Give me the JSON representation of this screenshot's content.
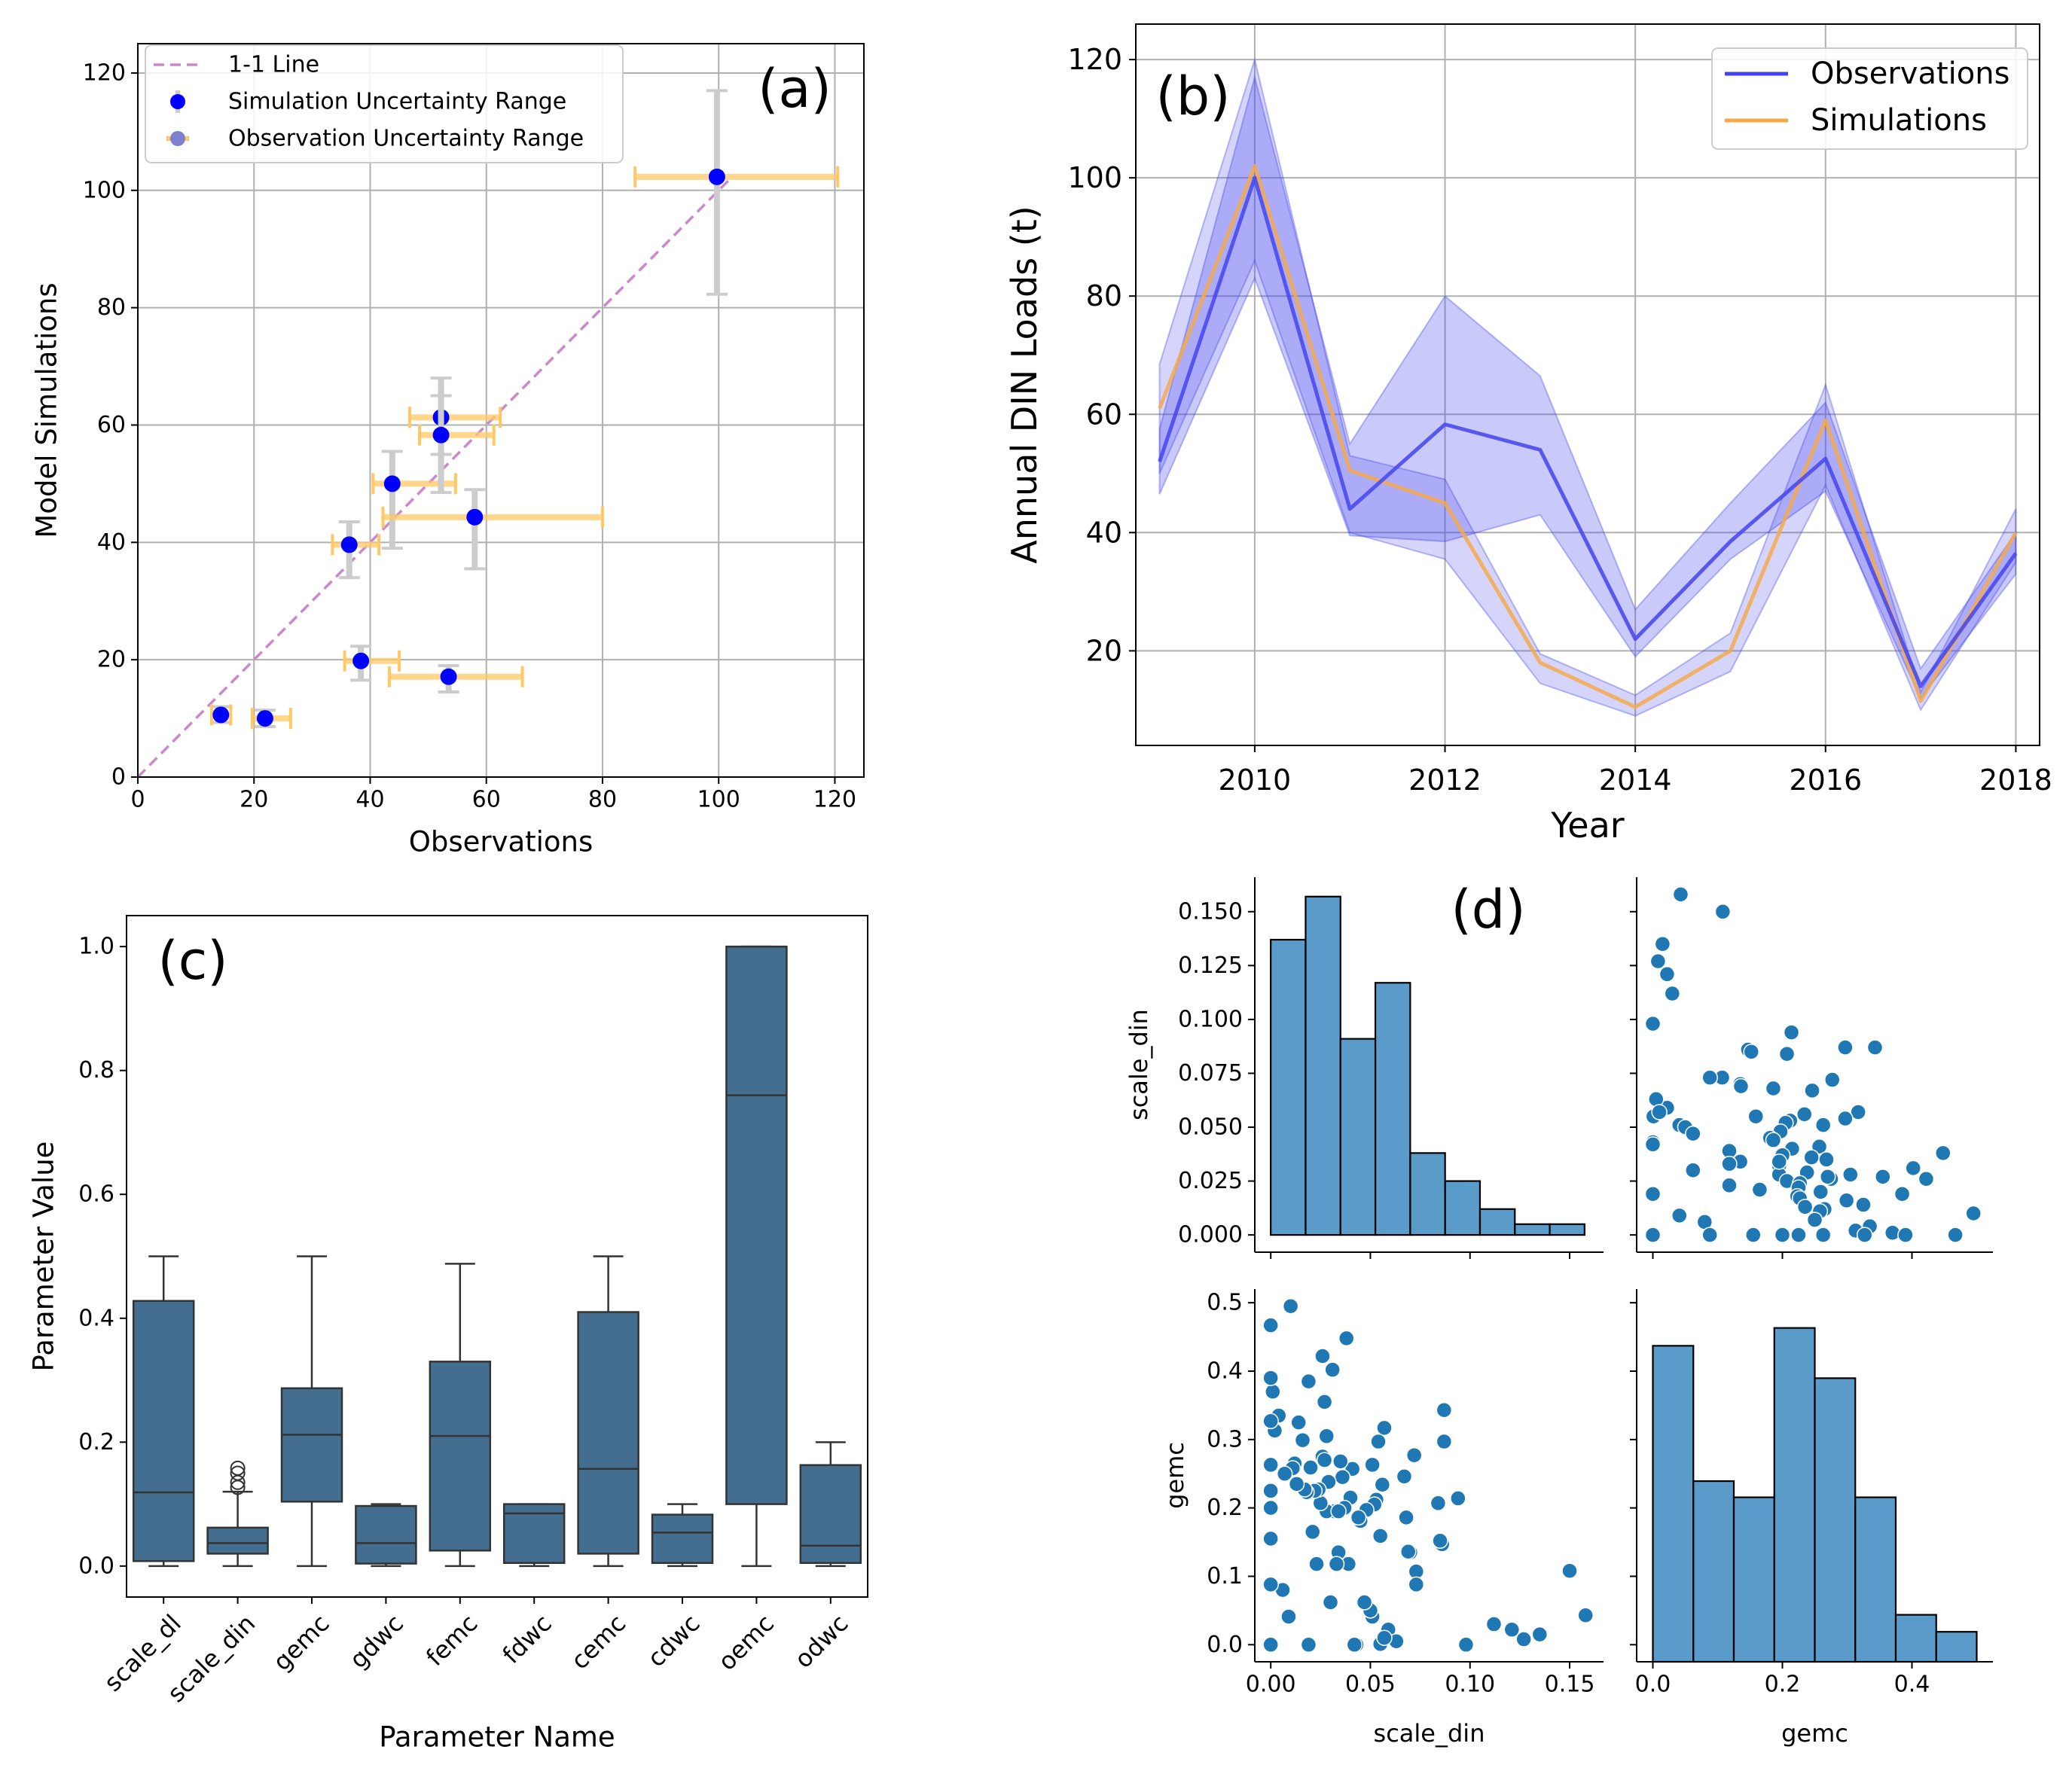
{
  "chart_data": [
    {
      "panel_label": "(a)",
      "type": "scatter",
      "xlabel": "Observations",
      "ylabel": "Model Simulations",
      "xlim": [
        0,
        125
      ],
      "ylim": [
        0,
        125
      ],
      "xticks": [
        0,
        20,
        40,
        60,
        80,
        100,
        120
      ],
      "yticks": [
        0,
        20,
        40,
        60,
        80,
        100,
        120
      ],
      "grid": true,
      "legend_position": "top-left",
      "legend": [
        "1-1 Line",
        "Simulation Uncertainty Range",
        "Observation Uncertainty Range"
      ],
      "colors": {
        "one_to_one": "#cc88cc",
        "points": "#0000ff",
        "sim_range": "#cccccc",
        "obs_range": "#ffc864"
      },
      "points": [
        {
          "x": 14.3,
          "y": 10.6,
          "xlo": 12.7,
          "xhi": 16.0,
          "ylo": 9.3,
          "yhi": 12.0
        },
        {
          "x": 21.9,
          "y": 10.0,
          "xlo": 19.7,
          "xhi": 26.3,
          "ylo": 8.6,
          "yhi": 11.4
        },
        {
          "x": 36.4,
          "y": 39.6,
          "xlo": 33.5,
          "xhi": 41.5,
          "ylo": 34.0,
          "yhi": 43.5
        },
        {
          "x": 38.4,
          "y": 19.8,
          "xlo": 35.6,
          "xhi": 45.0,
          "ylo": 16.5,
          "yhi": 22.3
        },
        {
          "x": 43.8,
          "y": 50.0,
          "xlo": 40.5,
          "xhi": 54.7,
          "ylo": 39.0,
          "yhi": 55.5
        },
        {
          "x": 52.2,
          "y": 61.3,
          "xlo": 46.8,
          "xhi": 62.4,
          "ylo": 55.0,
          "yhi": 68.0
        },
        {
          "x": 52.2,
          "y": 58.3,
          "xlo": 48.5,
          "xhi": 61.3,
          "ylo": 48.5,
          "yhi": 65.0
        },
        {
          "x": 53.5,
          "y": 17.1,
          "xlo": 43.3,
          "xhi": 66.2,
          "ylo": 14.5,
          "yhi": 19.0
        },
        {
          "x": 58.0,
          "y": 44.3,
          "xlo": 42.2,
          "xhi": 80.0,
          "ylo": 35.5,
          "yhi": 49.0
        },
        {
          "x": 99.7,
          "y": 102.3,
          "xlo": 85.6,
          "xhi": 120.5,
          "ylo": 82.3,
          "yhi": 117.0
        }
      ]
    },
    {
      "panel_label": "(b)",
      "type": "line",
      "xlabel": "Year",
      "ylabel": "Annual DIN Loads (t)",
      "xlim": [
        2008.75,
        2018.25
      ],
      "ylim": [
        4,
        126
      ],
      "xticks": [
        2010,
        2012,
        2014,
        2016,
        2018
      ],
      "yticks": [
        20,
        40,
        60,
        80,
        100,
        120
      ],
      "grid": true,
      "legend_position": "top-right",
      "x": [
        2009,
        2010,
        2011,
        2012,
        2013,
        2014,
        2015,
        2016,
        2017,
        2018
      ],
      "series": [
        {
          "name": "Observations",
          "color": "#4444ee",
          "values": [
            52,
            100,
            44,
            58.3,
            54,
            22,
            38.5,
            52.5,
            14,
            36.5
          ],
          "lower": [
            46.5,
            83,
            39.5,
            38.5,
            43,
            19,
            35.5,
            47,
            12,
            33
          ],
          "upper": [
            57.5,
            117,
            55,
            80,
            66.5,
            27,
            45,
            62,
            17,
            40
          ]
        },
        {
          "name": "Simulations",
          "color": "#f5a94a",
          "values": [
            61,
            102,
            50.5,
            45,
            18,
            10.5,
            20,
            59,
            11.5,
            40
          ],
          "lower": [
            50,
            86,
            40,
            35.5,
            14.5,
            9,
            16.5,
            48,
            10,
            35
          ],
          "upper": [
            68.5,
            120,
            53,
            49,
            19.5,
            12.5,
            23,
            65,
            13,
            44
          ]
        }
      ]
    },
    {
      "panel_label": "(c)",
      "type": "box",
      "xlabel": "Parameter Name",
      "ylabel": "Parameter Value",
      "ylim": [
        -0.05,
        1.05
      ],
      "yticks": [
        0.0,
        0.2,
        0.4,
        0.6,
        0.8,
        1.0
      ],
      "grid": false,
      "color": "#436e8f",
      "boxes": [
        {
          "name": "scale_dl",
          "min": 0.0,
          "q1": 0.008,
          "median": 0.119,
          "q3": 0.428,
          "max": 0.5,
          "outliers": []
        },
        {
          "name": "scale_din",
          "min": 0.0,
          "q1": 0.02,
          "median": 0.037,
          "q3": 0.062,
          "max": 0.12,
          "outliers": [
            0.127,
            0.135,
            0.15,
            0.158
          ]
        },
        {
          "name": "gemc",
          "min": 0.0,
          "q1": 0.104,
          "median": 0.212,
          "q3": 0.287,
          "max": 0.5,
          "outliers": []
        },
        {
          "name": "gdwc",
          "min": 0.0,
          "q1": 0.004,
          "median": 0.037,
          "q3": 0.097,
          "max": 0.1,
          "outliers": []
        },
        {
          "name": "femc",
          "min": 0.0,
          "q1": 0.025,
          "median": 0.21,
          "q3": 0.33,
          "max": 0.488,
          "outliers": []
        },
        {
          "name": "fdwc",
          "min": 0.0,
          "q1": 0.005,
          "median": 0.085,
          "q3": 0.1,
          "max": 0.1,
          "outliers": []
        },
        {
          "name": "cemc",
          "min": 0.0,
          "q1": 0.02,
          "median": 0.157,
          "q3": 0.41,
          "max": 0.5,
          "outliers": []
        },
        {
          "name": "cdwc",
          "min": 0.0,
          "q1": 0.005,
          "median": 0.054,
          "q3": 0.083,
          "max": 0.1,
          "outliers": []
        },
        {
          "name": "oemc",
          "min": 0.0,
          "q1": 0.1,
          "median": 0.76,
          "q3": 1.0,
          "max": 1.0,
          "outliers": []
        },
        {
          "name": "odwc",
          "min": 0.0,
          "q1": 0.005,
          "median": 0.033,
          "q3": 0.163,
          "max": 0.2,
          "outliers": []
        }
      ]
    },
    {
      "panel_label": "(d)",
      "type": "pairplot",
      "variables": [
        "scale_din",
        "gemc"
      ],
      "color": "#3182bd",
      "x_axes": {
        "scale_din": {
          "lim": [
            -0.008,
            0.167
          ],
          "ticks": [
            0.0,
            0.05,
            0.1,
            0.15
          ],
          "ticklabels": [
            "0.00",
            "0.05",
            "0.10",
            "0.15"
          ]
        },
        "gemc": {
          "lim": [
            -0.025,
            0.525
          ],
          "ticks": [
            0.0,
            0.2,
            0.4
          ],
          "ticklabels": [
            "0.0",
            "0.2",
            "0.4"
          ]
        }
      },
      "y_axes": {
        "scale_din": {
          "lim": [
            -0.008,
            0.166
          ],
          "ticks": [
            0.0,
            0.025,
            0.05,
            0.075,
            0.1,
            0.125,
            0.15
          ],
          "ticklabels": [
            "0.000",
            "0.025",
            "0.050",
            "0.075",
            "0.100",
            "0.125",
            "0.150"
          ]
        },
        "gemc": {
          "lim": [
            -0.025,
            0.52
          ],
          "ticks": [
            0.0,
            0.1,
            0.2,
            0.3,
            0.4,
            0.5
          ],
          "ticklabels": [
            "0.0",
            "0.1",
            "0.2",
            "0.3",
            "0.4",
            "0.5"
          ]
        }
      },
      "hist_scale_din": {
        "bins": [
          0,
          0.0175,
          0.035,
          0.0525,
          0.07,
          0.0875,
          0.105,
          0.1225,
          0.14,
          0.1575
        ],
        "heights": [
          0.137,
          0.157,
          0.091,
          0.117,
          0.038,
          0.025,
          0.012,
          0.005,
          0.005
        ]
      },
      "hist_gemc": {
        "bins": [
          0,
          0.0625,
          0.125,
          0.1875,
          0.25,
          0.3125,
          0.375,
          0.4375,
          0.5
        ],
        "heights": [
          0.39,
          0.223,
          0.203,
          0.412,
          0.35,
          0.203,
          0.058,
          0.037
        ]
      },
      "pairs": [
        [
          0.158,
          0.043
        ],
        [
          0.15,
          0.108
        ],
        [
          0.135,
          0.015
        ],
        [
          0.127,
          0.008
        ],
        [
          0.121,
          0.022
        ],
        [
          0.112,
          0.03
        ],
        [
          0.098,
          0.0
        ],
        [
          0.094,
          0.214
        ],
        [
          0.087,
          0.343
        ],
        [
          0.087,
          0.297
        ],
        [
          0.086,
          0.147
        ],
        [
          0.085,
          0.152
        ],
        [
          0.084,
          0.207
        ],
        [
          0.073,
          0.107
        ],
        [
          0.073,
          0.088
        ],
        [
          0.072,
          0.277
        ],
        [
          0.07,
          0.135
        ],
        [
          0.069,
          0.136
        ],
        [
          0.068,
          0.186
        ],
        [
          0.067,
          0.246
        ],
        [
          0.059,
          0.022
        ],
        [
          0.057,
          0.317
        ],
        [
          0.056,
          0.234
        ],
        [
          0.055,
          0.159
        ],
        [
          0.055,
          0.001
        ],
        [
          0.054,
          0.297
        ],
        [
          0.053,
          0.212
        ],
        [
          0.052,
          0.205
        ],
        [
          0.051,
          0.263
        ],
        [
          0.051,
          0.041
        ],
        [
          0.05,
          0.05
        ],
        [
          0.048,
          0.197
        ],
        [
          0.047,
          0.062
        ],
        [
          0.045,
          0.181
        ],
        [
          0.044,
          0.186
        ],
        [
          0.043,
          0.0
        ],
        [
          0.042,
          0.0
        ],
        [
          0.041,
          0.257
        ],
        [
          0.04,
          0.215
        ],
        [
          0.039,
          0.118
        ],
        [
          0.038,
          0.448
        ],
        [
          0.037,
          0.2
        ],
        [
          0.036,
          0.245
        ],
        [
          0.035,
          0.268
        ],
        [
          0.034,
          0.135
        ],
        [
          0.033,
          0.118
        ],
        [
          0.032,
          0.195
        ],
        [
          0.031,
          0.402
        ],
        [
          0.03,
          0.062
        ],
        [
          0.029,
          0.238
        ],
        [
          0.028,
          0.305
        ],
        [
          0.028,
          0.195
        ],
        [
          0.027,
          0.355
        ],
        [
          0.026,
          0.422
        ],
        [
          0.026,
          0.275
        ],
        [
          0.025,
          0.207
        ],
        [
          0.024,
          0.227
        ],
        [
          0.023,
          0.118
        ],
        [
          0.022,
          0.225
        ],
        [
          0.021,
          0.165
        ],
        [
          0.02,
          0.259
        ],
        [
          0.019,
          0.385
        ],
        [
          0.018,
          0.223
        ],
        [
          0.017,
          0.227
        ],
        [
          0.016,
          0.299
        ],
        [
          0.014,
          0.325
        ],
        [
          0.013,
          0.235
        ],
        [
          0.012,
          0.265
        ],
        [
          0.011,
          0.258
        ],
        [
          0.01,
          0.495
        ],
        [
          0.009,
          0.041
        ],
        [
          0.007,
          0.25
        ],
        [
          0.006,
          0.08
        ],
        [
          0.004,
          0.335
        ],
        [
          0.002,
          0.313
        ],
        [
          0.001,
          0.37
        ],
        [
          0.0,
          0.39
        ],
        [
          0.0,
          0.327
        ],
        [
          0.0,
          0.263
        ],
        [
          0.0,
          0.2
        ],
        [
          0.0,
          0.155
        ],
        [
          0.0,
          0.088
        ],
        [
          0.0,
          0.0
        ],
        [
          0.0,
          0.225
        ],
        [
          0.0,
          0.467
        ],
        [
          0.019,
          0.0
        ],
        [
          0.063,
          0.005
        ],
        [
          0.057,
          0.01
        ],
        [
          0.027,
          0.27
        ],
        [
          0.034,
          0.195
        ]
      ]
    }
  ]
}
